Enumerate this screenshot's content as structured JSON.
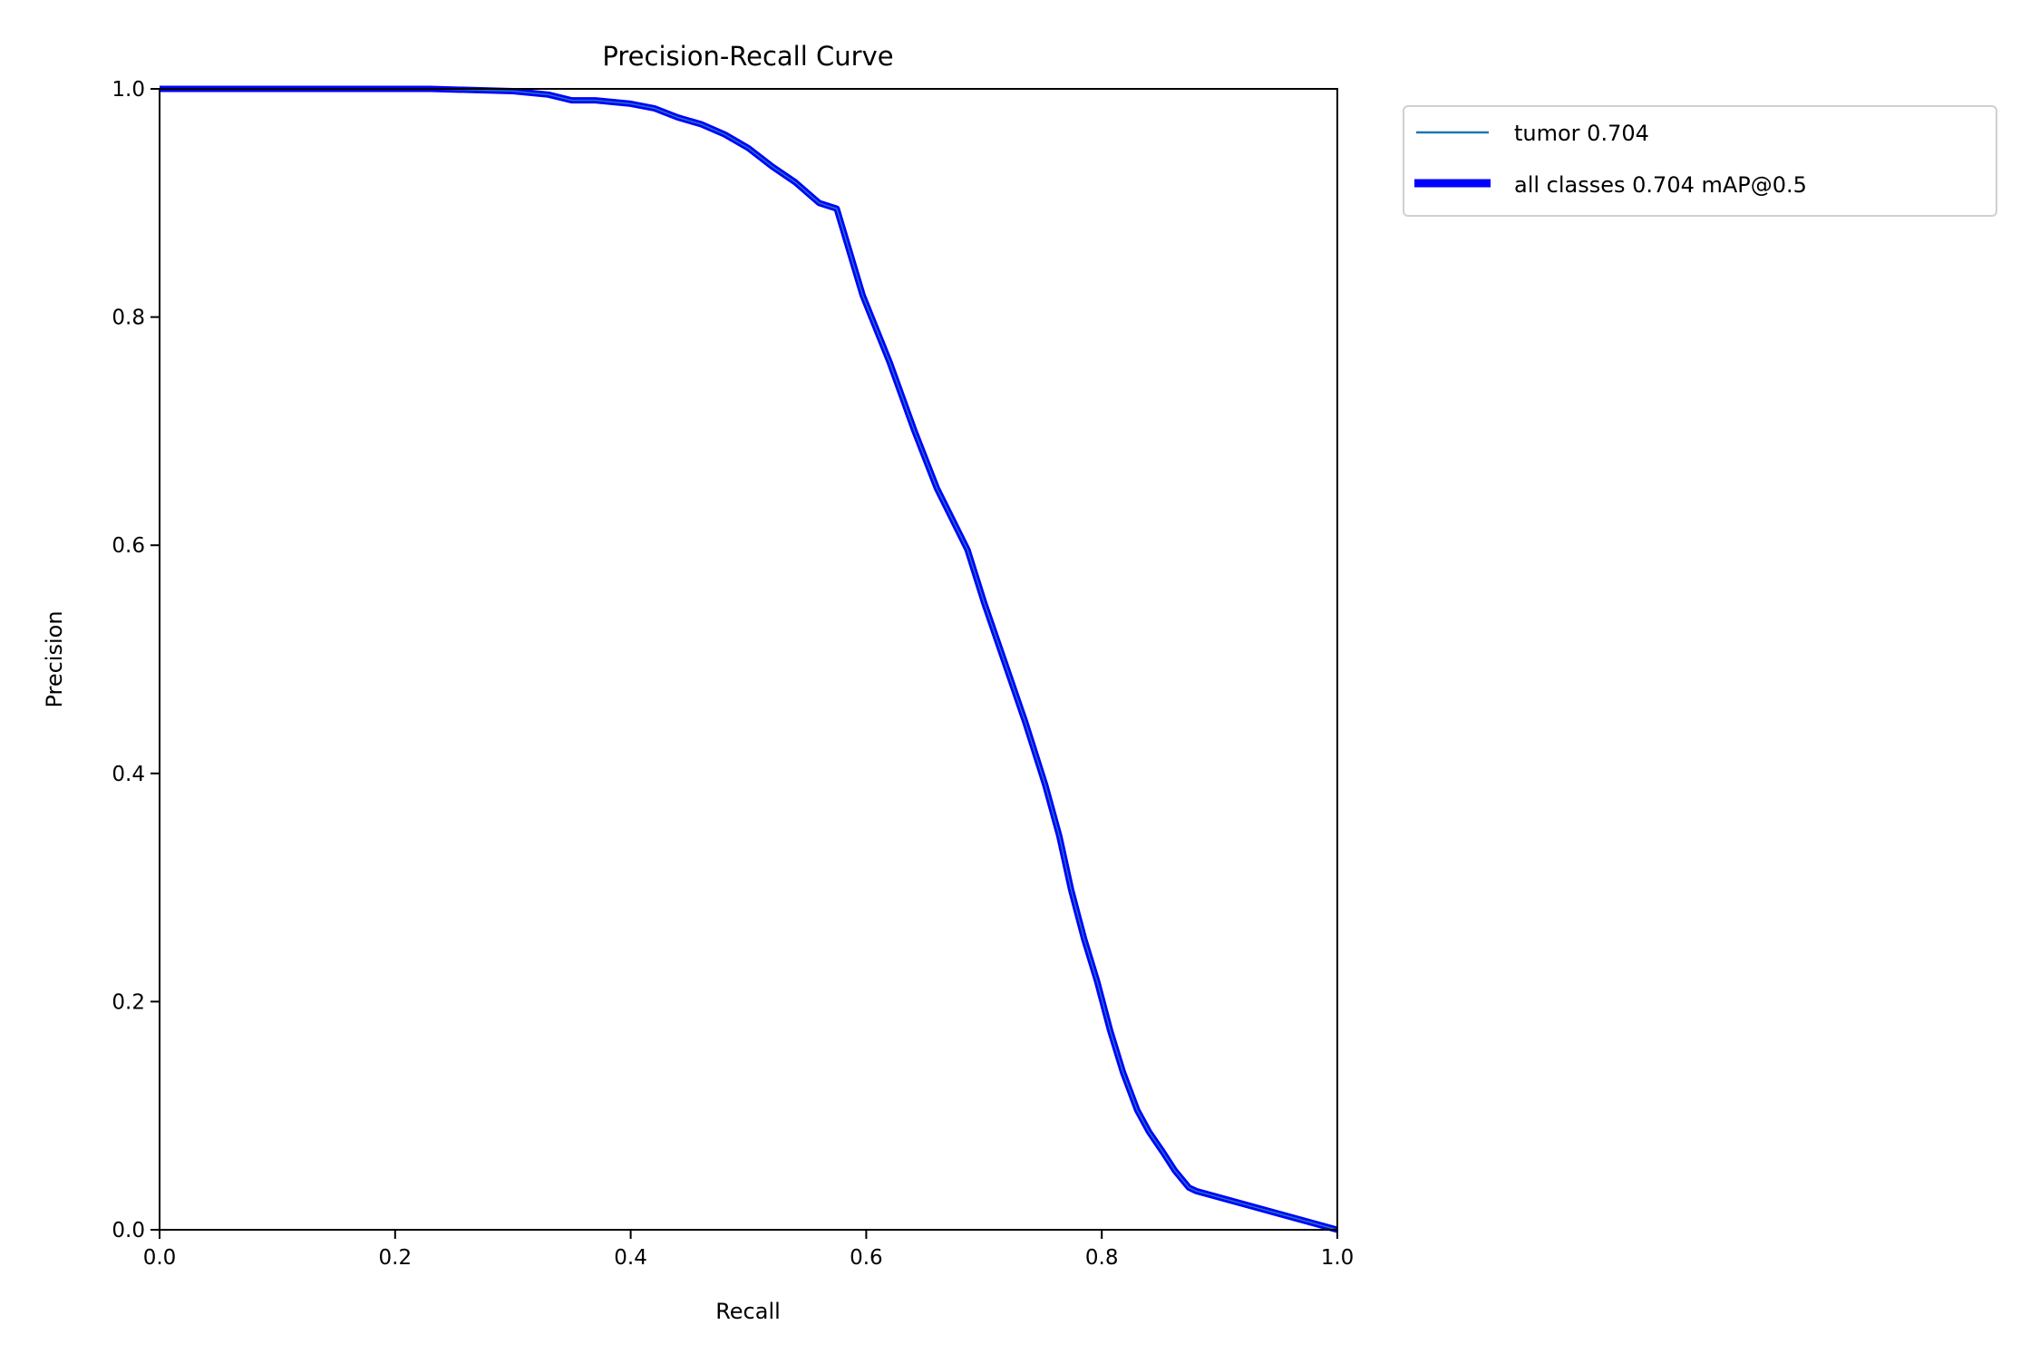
{
  "chart_data": {
    "type": "line",
    "title": "Precision-Recall Curve",
    "xlabel": "Recall",
    "ylabel": "Precision",
    "xlim": [
      0,
      1
    ],
    "ylim": [
      0,
      1
    ],
    "grid": false,
    "xticks": [
      "0.0",
      "0.2",
      "0.4",
      "0.6",
      "0.8",
      "1.0"
    ],
    "yticks": [
      "0.0",
      "0.2",
      "0.4",
      "0.6",
      "0.8",
      "1.0"
    ],
    "legend_position": "outside-top-right",
    "series": [
      {
        "name": "tumor 0.704",
        "color": "#1f77b4",
        "x": [
          0,
          0.12,
          0.23,
          0.3,
          0.33,
          0.35,
          0.37,
          0.4,
          0.42,
          0.44,
          0.46,
          0.48,
          0.5,
          0.52,
          0.54,
          0.56,
          0.575,
          0.597,
          0.62,
          0.641,
          0.66,
          0.686,
          0.7,
          0.719,
          0.735,
          0.752,
          0.764,
          0.774,
          0.785,
          0.796,
          0.807,
          0.818,
          0.83,
          0.84,
          0.852,
          0.862,
          0.874,
          0.88,
          1.0
        ],
        "y": [
          1,
          1,
          1,
          0.998,
          0.995,
          0.99,
          0.99,
          0.987,
          0.983,
          0.975,
          0.969,
          0.96,
          0.948,
          0.932,
          0.918,
          0.9,
          0.895,
          0.819,
          0.76,
          0.7,
          0.65,
          0.596,
          0.55,
          0.493,
          0.445,
          0.39,
          0.345,
          0.298,
          0.255,
          0.218,
          0.175,
          0.138,
          0.105,
          0.086,
          0.068,
          0.052,
          0.037,
          0.034,
          0.0
        ]
      },
      {
        "name": "all classes 0.704 mAP@0.5",
        "color": "#0000ff",
        "same_as": "tumor 0.704"
      }
    ]
  }
}
